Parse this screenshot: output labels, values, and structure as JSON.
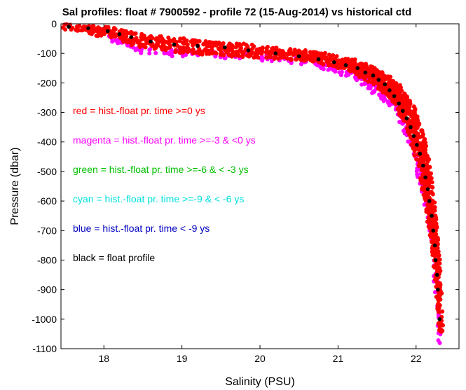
{
  "chart_data": {
    "type": "scatter",
    "title": "Sal profiles: float # 7900592 - profile 72 (15-Aug-2014) vs historical ctd",
    "xlabel": "Salinity (PSU)",
    "ylabel": "Pressure (dbar)",
    "xlim": [
      17.45,
      22.55
    ],
    "ylim": [
      -1100,
      0
    ],
    "xticks": [
      18,
      19,
      20,
      21,
      22
    ],
    "yticks": [
      0,
      -100,
      -200,
      -300,
      -400,
      -500,
      -600,
      -700,
      -800,
      -900,
      -1000,
      -1100
    ],
    "grid": false,
    "legend_position": "left, inside plot",
    "legend": [
      {
        "text": "red = hist.-float pr. time >=0 ys",
        "color": "#ff0000"
      },
      {
        "text": "magenta = hist.-float pr. time >=-3 & <0 ys",
        "color": "#ff00ff"
      },
      {
        "text": "green = hist.-float pr. time >=-6 & < -3 ys",
        "color": "#00c000"
      },
      {
        "text": "cyan = hist.-float pr. time >=-9 & < -6 ys",
        "color": "#00e0e0"
      },
      {
        "text": "blue = hist.-float pr. time < -9 ys",
        "color": "#0000c0"
      },
      {
        "text": "black = float profile",
        "color": "#000000"
      }
    ],
    "series": [
      {
        "name": "float profile",
        "color": "#000000",
        "x": [
          17.55,
          17.8,
          18.05,
          18.2,
          18.35,
          18.6,
          18.9,
          19.2,
          19.55,
          19.85,
          20.2,
          20.5,
          20.75,
          20.95,
          21.1,
          21.25,
          21.35,
          21.45,
          21.52,
          21.6,
          21.66,
          21.72,
          21.78,
          21.83,
          21.88,
          21.93,
          21.97,
          22.01,
          22.05,
          22.09,
          22.12,
          22.15,
          22.17,
          22.2,
          22.22,
          22.24,
          22.25,
          22.27,
          22.28,
          22.3
        ],
        "y": [
          -10,
          -15,
          -25,
          -35,
          -45,
          -60,
          -70,
          -75,
          -80,
          -90,
          -100,
          -110,
          -120,
          -130,
          -140,
          -150,
          -165,
          -175,
          -190,
          -205,
          -225,
          -245,
          -270,
          -295,
          -320,
          -350,
          -380,
          -410,
          -440,
          -480,
          -520,
          -560,
          -600,
          -650,
          -700,
          -750,
          -800,
          -850,
          -900,
          -1000
        ]
      },
      {
        "name": "red",
        "color": "#ff0000",
        "x": [
          17.5,
          17.9,
          18.2,
          18.6,
          19.0,
          19.4,
          19.8,
          20.2,
          20.6,
          20.9,
          21.15,
          21.35,
          21.5,
          21.62,
          21.72,
          21.8,
          21.88,
          21.95,
          22.02,
          22.08,
          22.13,
          22.17,
          22.21,
          22.24,
          22.27,
          22.3,
          22.32
        ],
        "y": [
          -10,
          -15,
          -30,
          -50,
          -60,
          -70,
          -80,
          -90,
          -100,
          -115,
          -130,
          -150,
          -170,
          -190,
          -215,
          -240,
          -270,
          -310,
          -360,
          -420,
          -480,
          -560,
          -640,
          -720,
          -800,
          -900,
          -1050
        ],
        "spread": 0.16,
        "density": 32,
        "x2": [
          17.7,
          18.1,
          18.5,
          18.9,
          19.3,
          19.7,
          20.1,
          20.5,
          20.8,
          21.05,
          21.25,
          21.4,
          21.55,
          21.65,
          21.75,
          21.85,
          21.93,
          22.0,
          22.07,
          22.12,
          22.17,
          22.22,
          22.26,
          22.3
        ],
        "y2": [
          -10,
          -40,
          -70,
          -85,
          -95,
          -100,
          -105,
          -115,
          -125,
          -140,
          -160,
          -180,
          -205,
          -230,
          -260,
          -300,
          -350,
          -410,
          -480,
          -560,
          -640,
          -720,
          -820,
          -960
        ]
      },
      {
        "name": "magenta",
        "color": "#ff00ff",
        "x": [
          17.9,
          18.2,
          18.5,
          18.9,
          19.3,
          19.7,
          20.1,
          20.5,
          20.8,
          21.0,
          21.2,
          21.35,
          21.48,
          21.6,
          21.72,
          21.82,
          21.9,
          21.98,
          22.05,
          22.12,
          22.18,
          22.22,
          22.26,
          22.3
        ],
        "y": [
          -20,
          -60,
          -90,
          -100,
          -105,
          -110,
          -115,
          -125,
          -140,
          -155,
          -175,
          -200,
          -225,
          -250,
          -280,
          -320,
          -370,
          -430,
          -500,
          -580,
          -660,
          -760,
          -880,
          -1080
        ],
        "spread": 0.12,
        "density": 14
      }
    ]
  }
}
